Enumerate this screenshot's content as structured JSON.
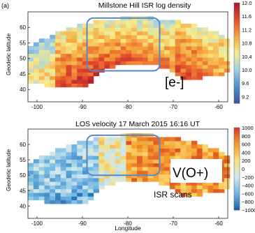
{
  "panel_label": "(a)",
  "callouts": {
    "top": "[e-]",
    "bottom": "V(O+)",
    "scans": "ISR scans"
  },
  "colors": {
    "highlight_box": "#5b86c8",
    "density_scale": [
      "#3a52a3",
      "#4f8ec9",
      "#9fd0e4",
      "#f7ec8c",
      "#f6a53c",
      "#e24a2c",
      "#a8192e"
    ],
    "velocity_scale": [
      "#1a5fa8",
      "#6fb6e3",
      "#cfe8ee",
      "#f7e07a",
      "#f59a2c",
      "#d33c1e"
    ]
  },
  "chart_data": [
    {
      "type": "heatmap",
      "title": "Millstone Hill ISR log density",
      "xlabel": "",
      "ylabel": "Geodetic latitude",
      "xlim": [
        -102,
        -58
      ],
      "ylim": [
        36,
        65
      ],
      "x_ticks": [
        "-100",
        "-90",
        "-80",
        "-70",
        "-60"
      ],
      "y_ticks": [
        "40",
        "45",
        "50",
        "55",
        "60"
      ],
      "colorbar": {
        "range": [
          9.0,
          12.0
        ],
        "ticks": [
          "12.0",
          "11.6",
          "11.2",
          "10.8",
          "10.4",
          "10.0",
          "9.6",
          "9.2"
        ]
      },
      "highlight_box": {
        "lon": [
          -89,
          -73
        ],
        "lat": [
          46,
          63
        ]
      }
    },
    {
      "type": "heatmap",
      "title": "LOS velocity 17 March 2015 16:16 UT",
      "xlabel": "Longitude",
      "ylabel": "Geodetic latitude",
      "xlim": [
        -102,
        -58
      ],
      "ylim": [
        36,
        65
      ],
      "x_ticks": [
        "-100",
        "-90",
        "-80",
        "-70",
        "-60"
      ],
      "y_ticks": [
        "40",
        "45",
        "50",
        "55",
        "60"
      ],
      "colorbar": {
        "range": [
          -1000,
          1000
        ],
        "ticks": [
          "1000",
          "800",
          "600",
          "400",
          "200",
          "0",
          "−200",
          "−400",
          "−600",
          "−800",
          "−1000"
        ]
      },
      "highlight_box": {
        "lon": [
          -89,
          -73
        ],
        "lat": [
          50,
          63
        ]
      }
    }
  ]
}
